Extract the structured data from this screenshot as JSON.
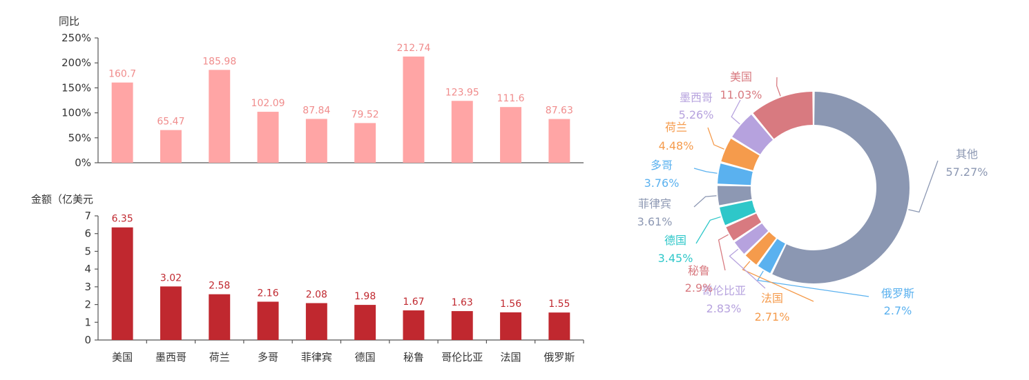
{
  "chart_data": [
    {
      "type": "bar",
      "ylabel": "同比",
      "ylim": [
        0,
        250
      ],
      "yticks": [
        "0%",
        "50%",
        "100%",
        "150%",
        "200%",
        "250%"
      ],
      "categories": [
        "美国",
        "墨西哥",
        "荷兰",
        "多哥",
        "菲律宾",
        "德国",
        "秘鲁",
        "哥伦比亚",
        "法国",
        "俄罗斯"
      ],
      "values": [
        160.7,
        65.47,
        185.98,
        102.09,
        87.84,
        79.52,
        212.74,
        123.95,
        111.6,
        87.63
      ],
      "value_labels": [
        "160.7",
        "65.47",
        "185.98",
        "102.09",
        "87.84",
        "79.52",
        "212.74",
        "123.95",
        "111.6",
        "87.63"
      ],
      "bar_color": "#ffa5a5",
      "label_color": "#f08c8c"
    },
    {
      "type": "bar",
      "ylabel": "金额（亿美元",
      "ylim": [
        0,
        7
      ],
      "yticks": [
        "0",
        "1",
        "2",
        "3",
        "4",
        "5",
        "6",
        "7"
      ],
      "categories": [
        "美国",
        "墨西哥",
        "荷兰",
        "多哥",
        "菲律宾",
        "德国",
        "秘鲁",
        "哥伦比亚",
        "法国",
        "俄罗斯"
      ],
      "values": [
        6.35,
        3.02,
        2.58,
        2.16,
        2.08,
        1.98,
        1.67,
        1.63,
        1.56,
        1.55
      ],
      "value_labels": [
        "6.35",
        "3.02",
        "2.58",
        "2.16",
        "2.08",
        "1.98",
        "1.67",
        "1.63",
        "1.56",
        "1.55"
      ],
      "bar_color": "#c0282f",
      "label_color": "#c0282f"
    },
    {
      "type": "pie",
      "style": "donut",
      "slices": [
        {
          "name": "其他",
          "label": "57.27%",
          "value": 57.27,
          "color": "#8b97b2"
        },
        {
          "name": "俄罗斯",
          "label": "2.7%",
          "value": 2.7,
          "color": "#5ab1ef"
        },
        {
          "name": "法国",
          "label": "2.71%",
          "value": 2.71,
          "color": "#f59b4c"
        },
        {
          "name": "哥伦比亚",
          "label": "2.83%",
          "value": 2.83,
          "color": "#b6a2de"
        },
        {
          "name": "秘鲁",
          "label": "2.9%",
          "value": 2.9,
          "color": "#d87a80"
        },
        {
          "name": "德国",
          "label": "3.45%",
          "value": 3.45,
          "color": "#2ec7c9"
        },
        {
          "name": "菲律宾",
          "label": "3.61%",
          "value": 3.61,
          "color": "#8d98b3"
        },
        {
          "name": "多哥",
          "label": "3.76%",
          "value": 3.76,
          "color": "#5ab1ef"
        },
        {
          "name": "荷兰",
          "label": "4.48%",
          "value": 4.48,
          "color": "#f59b4c"
        },
        {
          "name": "墨西哥",
          "label": "5.26%",
          "value": 5.26,
          "color": "#b6a2de"
        },
        {
          "name": "美国",
          "label": "11.03%",
          "value": 11.03,
          "color": "#d87a80"
        }
      ]
    }
  ]
}
